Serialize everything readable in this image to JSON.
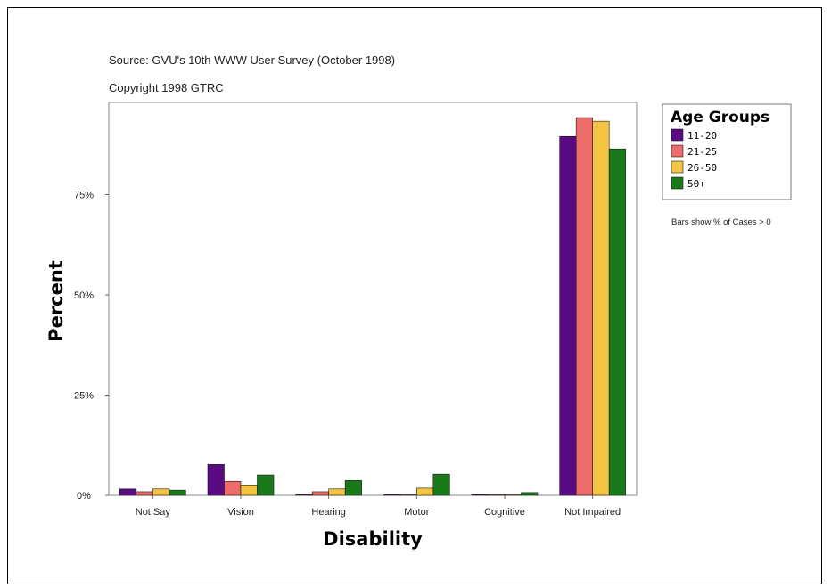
{
  "chart_data": {
    "type": "bar",
    "source": "Source: GVU's 10th WWW User Survey (October 1998)",
    "copyright": "Copyright 1998 GTRC",
    "xlabel": "Disability",
    "ylabel": "Percent",
    "categories": [
      "Not Say",
      "Vision",
      "Hearing",
      "Motor",
      "Cognitive",
      "Not Impaired"
    ],
    "y_ticks": [
      {
        "value": 0,
        "label": "0%"
      },
      {
        "value": 25,
        "label": "25%"
      },
      {
        "value": 50,
        "label": "50%"
      },
      {
        "value": 75,
        "label": "75%"
      }
    ],
    "ylim": [
      0,
      98
    ],
    "legend": {
      "title": "Age Groups",
      "position": "right"
    },
    "note": "Bars show % of Cases > 0",
    "series": [
      {
        "name": "11-20",
        "color": "#5a0a82",
        "values": [
          1.6,
          7.7,
          0.2,
          0.2,
          0.2,
          89.5
        ]
      },
      {
        "name": "21-25",
        "color": "#ee6b6b",
        "values": [
          0.9,
          3.5,
          0.9,
          0.2,
          0.2,
          94.2
        ]
      },
      {
        "name": "26-50",
        "color": "#f4c542",
        "values": [
          1.6,
          2.6,
          1.6,
          1.8,
          0.2,
          93.3
        ]
      },
      {
        "name": "50+",
        "color": "#1a7a1a",
        "values": [
          1.3,
          5.1,
          3.7,
          5.3,
          0.7,
          86.4
        ]
      }
    ]
  }
}
